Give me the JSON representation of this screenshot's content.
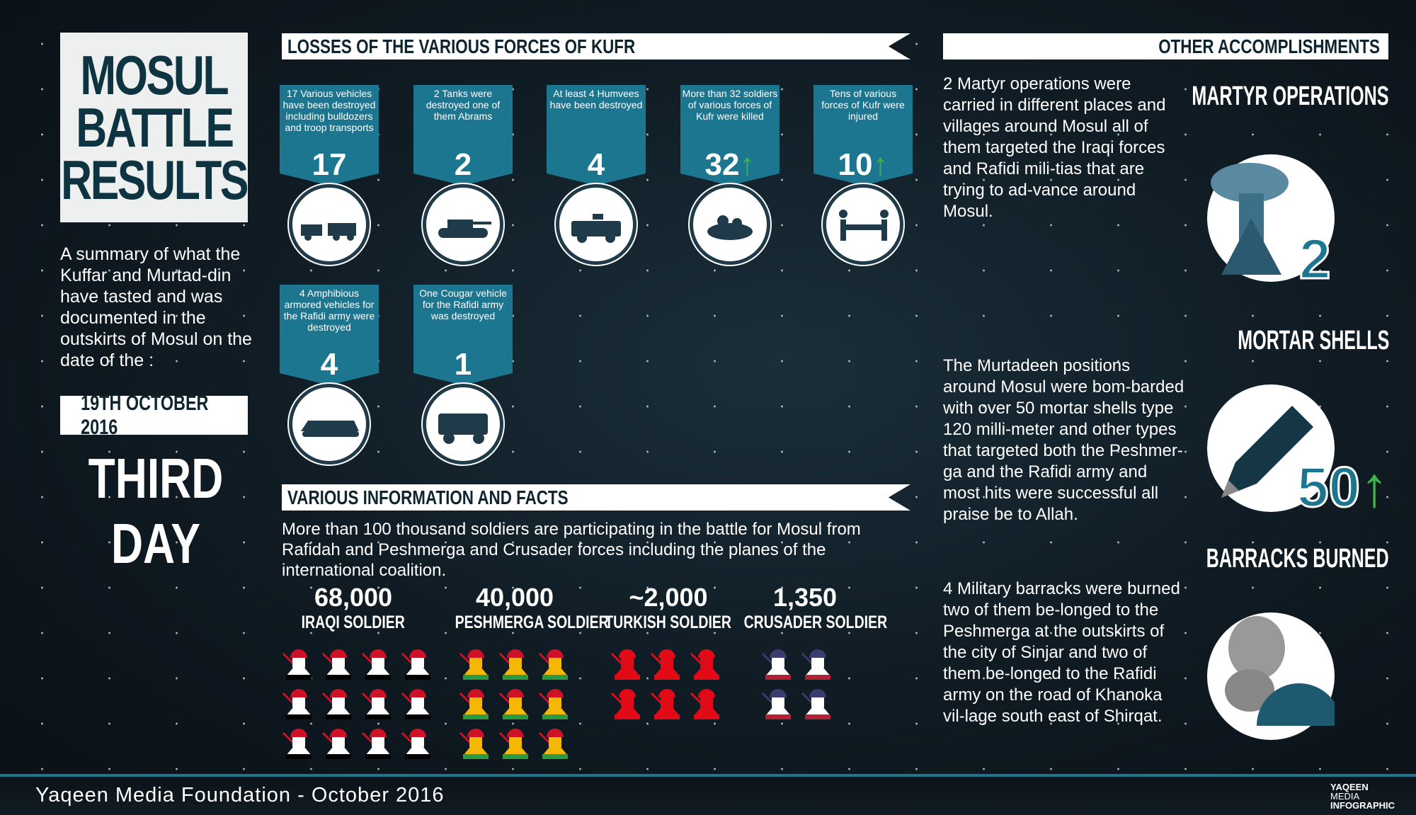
{
  "title": {
    "lines": [
      "MOSUL",
      "BATTLE",
      "RESULTS"
    ]
  },
  "summary": "A summary of what the Kuffar and Murtad-din have tasted and was documented in the outskirts of Mosul on the date of the :",
  "date": "19TH OCTOBER 2016",
  "day": "THIRD DAY",
  "losses": {
    "header": "LOSSES OF THE VARIOUS FORCES OF KUFR",
    "cards": [
      {
        "text": "17 Various vehicles have been destroyed including bulldozers and troop transports",
        "value": "17",
        "trend": "",
        "icon": "bulldozer-truck-icon"
      },
      {
        "text": "2 Tanks were destroyed one of them Abrams",
        "value": "2",
        "trend": "",
        "icon": "tank-icon"
      },
      {
        "text": "At least 4 Humvees have been destroyed",
        "value": "4",
        "trend": "",
        "icon": "humvee-icon"
      },
      {
        "text": "More than 32 soldiers of various forces of Kufr were killed",
        "value": "32",
        "trend": "↑",
        "icon": "killed-soldiers-icon"
      },
      {
        "text": "Tens of various forces of Kufr were injured",
        "value": "10",
        "trend": "↑",
        "icon": "stretcher-icon"
      },
      {
        "text": "4 Amphibious armored vehicles for the Rafidi army were destroyed",
        "value": "4",
        "trend": "",
        "icon": "amphibious-vehicle-icon"
      },
      {
        "text": "One Cougar vehicle for the Rafidi army was destroyed",
        "value": "1",
        "trend": "",
        "icon": "cougar-vehicle-icon"
      }
    ]
  },
  "info": {
    "header": "VARIOUS INFORMATION AND FACTS",
    "text": "More than 100 thousand soldiers are participating in the battle for Mosul from Rafidah and Peshmerga and Crusader forces including the planes of the international coalition.",
    "stats": [
      {
        "number": "68,000",
        "label": "IRAQI SOLDIER",
        "icons": 12,
        "cols": 4,
        "flag": "iraq"
      },
      {
        "number": "40,000",
        "label": "PESHMERGA SOLDIER",
        "icons": 9,
        "cols": 3,
        "flag": "kurdistan"
      },
      {
        "number": "~2,000",
        "label": "TURKISH SOLDIER",
        "icons": 6,
        "cols": 3,
        "flag": "turkey"
      },
      {
        "number": "1,350",
        "label": "CRUSADER SOLDIER",
        "icons": 4,
        "cols": 2,
        "flag": "usa"
      }
    ]
  },
  "other": {
    "header": "OTHER ACCOMPLISHMENTS",
    "items": [
      {
        "heading": "MARTYR OPERATIONS",
        "text": "2 Martyr operations were carried in different places and villages around Mosul all of them targeted the Iraqi forces and Rafidi mili-tias that are trying to ad-vance around Mosul.",
        "value": "2",
        "trend": ""
      },
      {
        "heading": "MORTAR SHELLS",
        "text": "The Murtadeen positions around Mosul were bom-barded with over 50 mortar shells type 120 milli-meter and other types that targeted both the Peshmer-ga and the Rafidi army and most hits were successful all praise be to Allah.",
        "value": "50",
        "trend": "↑"
      },
      {
        "heading": "BARRACKS BURNED",
        "text": "4 Military barracks were burned two of them be-longed to the Peshmerga at the outskirts of the city of Sinjar and two of them be-longed to the Rafidi army on the road of Khanoka vil-lage south east of Shirqat.",
        "value": "",
        "trend": ""
      }
    ]
  },
  "footer": {
    "text": "Yaqeen Media Foundation - October 2016",
    "logo": [
      "YAQEEN",
      "MEDIA",
      "INFOGRAPHIC"
    ]
  },
  "colors": {
    "accent": "#1d7690",
    "up": "#3cb54a",
    "background": "#0f1a22"
  }
}
